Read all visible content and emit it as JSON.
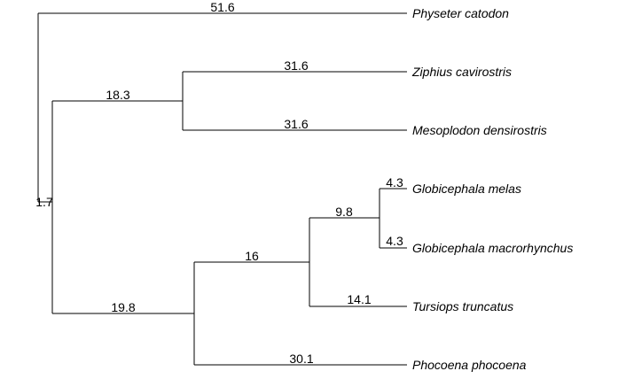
{
  "tree": {
    "edges": [
      {
        "id": "e-physeter",
        "label": "51.6"
      },
      {
        "id": "e-clade-a",
        "label": "1.7"
      },
      {
        "id": "e-ziphiidae",
        "label": "18.3"
      },
      {
        "id": "e-ziphius",
        "label": "31.6"
      },
      {
        "id": "e-mesoplodon",
        "label": "31.6"
      },
      {
        "id": "e-delphinoidea",
        "label": "19.8"
      },
      {
        "id": "e-delphinidae",
        "label": "16"
      },
      {
        "id": "e-globicephala",
        "label": "9.8"
      },
      {
        "id": "e-gmelas",
        "label": "4.3"
      },
      {
        "id": "e-gmacro",
        "label": "4.3"
      },
      {
        "id": "e-tursiops",
        "label": "14.1"
      },
      {
        "id": "e-phocoena",
        "label": "30.1"
      }
    ],
    "tips": [
      {
        "id": "tip-physeter",
        "name": "Physeter catodon"
      },
      {
        "id": "tip-ziphius",
        "name": "Ziphius cavirostris"
      },
      {
        "id": "tip-mesoplodon",
        "name": "Mesoplodon densirostris"
      },
      {
        "id": "tip-gmelas",
        "name": "Globicephala melas"
      },
      {
        "id": "tip-gmacro",
        "name": "Globicephala macrorhynchus"
      },
      {
        "id": "tip-tursiops",
        "name": "Tursiops truncatus"
      },
      {
        "id": "tip-phocoena",
        "name": "Phocoena phocoena"
      }
    ]
  }
}
